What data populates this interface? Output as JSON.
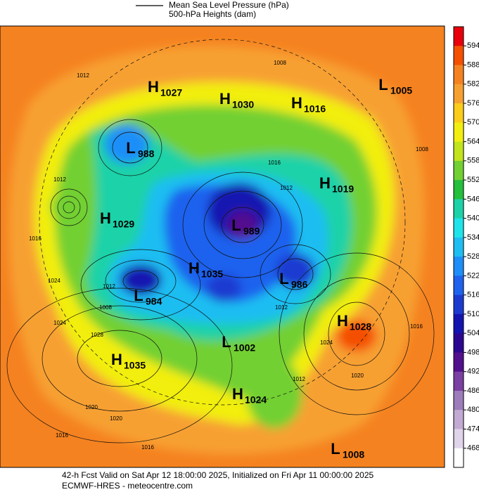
{
  "legend": {
    "line_label": "Mean Sea Level Pressure (hPa)",
    "fill_label": "500-hPa Heights (dam)"
  },
  "colorbar": {
    "ticks": [
      594,
      588,
      582,
      576,
      570,
      564,
      558,
      552,
      546,
      540,
      534,
      528,
      522,
      516,
      510,
      504,
      498,
      492,
      486,
      480,
      474,
      468
    ],
    "colors": [
      "#e8000b",
      "#f45000",
      "#f58220",
      "#f7a032",
      "#fccc1a",
      "#f2ee10",
      "#c2e41c",
      "#72d032",
      "#24bf3c",
      "#1ed2a8",
      "#1ee4ea",
      "#1ebef2",
      "#1e8ef8",
      "#1e62ee",
      "#1c3ad0",
      "#1414b0",
      "#2c0890",
      "#52108e",
      "#7a40a2",
      "#9c7cba",
      "#c2aad2",
      "#e0d4ea",
      "#ffffff"
    ]
  },
  "centers": [
    {
      "type": "H",
      "value": 1027
    },
    {
      "type": "H",
      "value": 1030
    },
    {
      "type": "H",
      "value": 1016
    },
    {
      "type": "L",
      "value": 1005
    },
    {
      "type": "L",
      "value": 988
    },
    {
      "type": "H",
      "value": 1019
    },
    {
      "type": "H",
      "value": 1029
    },
    {
      "type": "L",
      "value": 989
    },
    {
      "type": "H",
      "value": 1035
    },
    {
      "type": "L",
      "value": 986
    },
    {
      "type": "L",
      "value": 984
    },
    {
      "type": "H",
      "value": 1028
    },
    {
      "type": "L",
      "value": 1002
    },
    {
      "type": "H",
      "value": 1035
    },
    {
      "type": "H",
      "value": 1024
    },
    {
      "type": "L",
      "value": 1008
    }
  ],
  "isobar_labels": [
    1008,
    1012,
    1016,
    1012,
    1012,
    1016,
    1024,
    1012,
    1008,
    1024,
    1028,
    1020,
    1020,
    1016,
    1016,
    1012,
    1024,
    1020,
    1012,
    1016,
    1008
  ],
  "footer": {
    "line1": "42-h Fcst Valid on Sat Apr 12 18:00:00 2025, Initialized on Fri Apr 11 00:00:00 2025",
    "line2": "ECMWF-HRES  - meteocentre.com"
  }
}
